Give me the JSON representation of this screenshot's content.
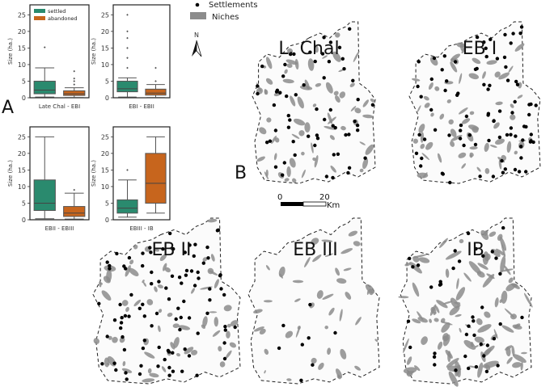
{
  "panels": {
    "a_label": "A",
    "b_label": "B"
  },
  "colors": {
    "settled": "#2a8a6e",
    "abandoned": "#c7651d",
    "niche": "#8c8c8c",
    "settlement": "#000000"
  },
  "chart_data": [
    {
      "type": "box",
      "title": "Late Chal - EBI",
      "xlabel": "Late Chal - EBI",
      "ylabel": "Size (ha.)",
      "ylim": [
        0,
        28
      ],
      "yticks": [
        0,
        5,
        10,
        15,
        20,
        25
      ],
      "legend": {
        "position": "top-left",
        "entries": [
          "settled",
          "abandoned"
        ]
      },
      "series": [
        {
          "name": "settled",
          "whisker_low": 0.2,
          "q1": 1.2,
          "median": 2.3,
          "q3": 5.0,
          "whisker_high": 9.0,
          "outliers": [
            15.2
          ]
        },
        {
          "name": "abandoned",
          "whisker_low": 0.1,
          "q1": 0.7,
          "median": 1.2,
          "q3": 2.1,
          "whisker_high": 3.0,
          "outliers": [
            4.0,
            5.0,
            5.8,
            8.0
          ]
        }
      ]
    },
    {
      "type": "box",
      "title": "EBI - EBII",
      "xlabel": "EBI - EBII",
      "ylabel": "Size (ha.)",
      "ylim": [
        0,
        28
      ],
      "yticks": [
        0,
        5,
        10,
        15,
        20,
        25
      ],
      "series": [
        {
          "name": "settled",
          "whisker_low": 0.2,
          "q1": 1.8,
          "median": 2.7,
          "q3": 5.0,
          "whisker_high": 6.0,
          "outliers": [
            9.0,
            12.0,
            15.0,
            18.0,
            20.0,
            25.0
          ]
        },
        {
          "name": "abandoned",
          "whisker_low": 0.1,
          "q1": 0.8,
          "median": 1.4,
          "q3": 2.6,
          "whisker_high": 4.0,
          "outliers": [
            5.0,
            9.0
          ]
        }
      ]
    },
    {
      "type": "box",
      "title": "EBII - EBIII",
      "xlabel": "EBII - EBIII",
      "ylabel": "Size (ha.)",
      "ylim": [
        0,
        28
      ],
      "yticks": [
        0,
        5,
        10,
        15,
        20,
        25
      ],
      "series": [
        {
          "name": "settled",
          "whisker_low": 0.3,
          "q1": 2.8,
          "median": 5.0,
          "q3": 12.0,
          "whisker_high": 25.0,
          "outliers": []
        },
        {
          "name": "abandoned",
          "whisker_low": 0.2,
          "q1": 1.0,
          "median": 2.0,
          "q3": 4.0,
          "whisker_high": 8.0,
          "outliers": [
            9.0
          ]
        }
      ]
    },
    {
      "type": "box",
      "title": "EBIII - IB",
      "xlabel": "EBIII - IB",
      "ylabel": "Size (ha.)",
      "ylim": [
        0,
        28
      ],
      "yticks": [
        0,
        5,
        10,
        15,
        20,
        25
      ],
      "series": [
        {
          "name": "settled",
          "whisker_low": 0.8,
          "q1": 2.0,
          "median": 3.5,
          "q3": 6.0,
          "whisker_high": 12.0,
          "outliers": [
            15.0
          ]
        },
        {
          "name": "abandoned",
          "whisker_low": 2.0,
          "q1": 5.0,
          "median": 11.0,
          "q3": 20.0,
          "whisker_high": 25.0,
          "outliers": []
        }
      ]
    }
  ],
  "maps": {
    "legend": {
      "settlements": "Settlements",
      "niches": "Niches"
    },
    "north": "N",
    "scale": {
      "start": "0",
      "end": "20",
      "unit": "Km"
    },
    "titles": [
      "L. Chal",
      "EB I",
      "EB II",
      "EB III",
      "IB"
    ]
  }
}
